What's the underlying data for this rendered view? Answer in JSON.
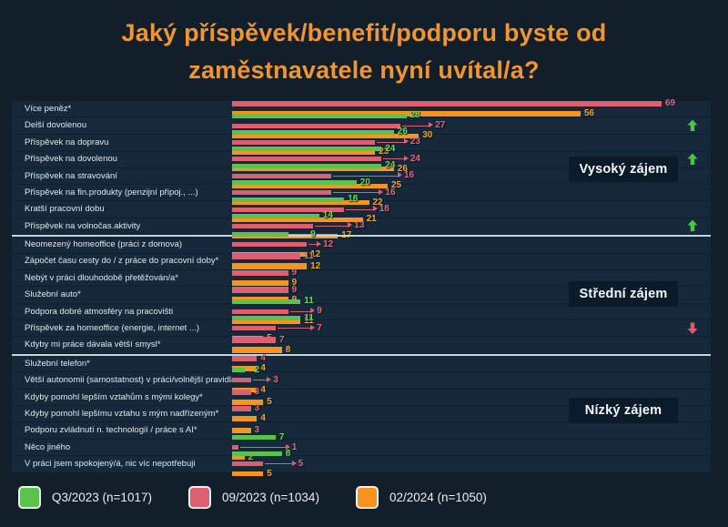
{
  "title": {
    "line1": "Jaký příspěvek/benefit/podporu byste od",
    "line2": "zaměstnavatele nyní uvítal/a?"
  },
  "colors": {
    "background": "#121e2a",
    "plot_band": "#16293a",
    "row_divider": "#0d2030",
    "title_orange": "#f0952f",
    "series_green": "#5cc24e",
    "series_pink": "#dd6070",
    "series_orange": "#f6941d",
    "label_green": "#6fd758",
    "label_pink": "#e2677a",
    "label_orange": "#efa437",
    "separator_white": "#c9d3da",
    "zone_box_bg": "#0c1b29",
    "trend_up": "#4fc444",
    "trend_down": "#e05a6d",
    "row_label_text": "#dfe8ee"
  },
  "legend": [
    {
      "label": "Q3/2023 (n=1017)",
      "color": "#5cc24e"
    },
    {
      "label": "09/2023 (n=1034)",
      "color": "#dd6070"
    },
    {
      "label": "02/2024 (n=1050)",
      "color": "#f6941d"
    }
  ],
  "zones": [
    {
      "label": "Vysoký zájem"
    },
    {
      "label": "Střední zájem"
    },
    {
      "label": "Nízký zájem"
    }
  ],
  "chart_data": {
    "type": "bar",
    "orientation": "horizontal",
    "title": "Jaký příspěvek/benefit/podporu byste od zaměstnavatele nyní uvítal/a?",
    "series_names": [
      "Q3/2023 (n=1017)",
      "09/2023 (n=1034)",
      "02/2024 (n=1050)"
    ],
    "series_order_note": "row values arrays are [Q3/2023, 09/2023, 02/2024]; null = bar not shown",
    "xlim": [
      0,
      77
    ],
    "grid": "row-dividers-only",
    "legend_position": "bottom",
    "sections": [
      {
        "zone": "Vysoký zájem",
        "rows": [
          {
            "category": "Více peněz*",
            "values": [
              null,
              69,
              56
            ],
            "trend": null
          },
          {
            "category": "Delší dovolenou",
            "values": [
              28,
              27,
              30
            ],
            "trend": "up"
          },
          {
            "category": "Příspěvek na dopravu",
            "values": [
              26,
              23,
              23
            ],
            "trend": null
          },
          {
            "category": "Příspěvek na dovolenou",
            "values": [
              24,
              24,
              26
            ],
            "trend": "up"
          },
          {
            "category": "Příspěvek na stravování",
            "values": [
              24,
              16,
              25
            ],
            "trend": null
          },
          {
            "category": "Příspěvek na fin.produkty (penzijní připoj., ...)",
            "values": [
              20,
              16,
              22
            ],
            "trend": null
          },
          {
            "category": "Kratší pracovní dobu",
            "values": [
              18,
              18,
              21
            ],
            "trend": null
          },
          {
            "category": "Příspěvek na volnočas.aktivity",
            "values": [
              14,
              13,
              17
            ],
            "trend": "up"
          }
        ]
      },
      {
        "zone": "Střední zájem",
        "rows": [
          {
            "category": "Neomezený homeoffice (práci z domova)",
            "values": [
              9,
              12,
              12
            ],
            "trend": null
          },
          {
            "category": "Zápočet času cesty do / z práce do pracovní doby*",
            "values": [
              null,
              11,
              12
            ],
            "trend": null
          },
          {
            "category": "Nebýt v práci dlouhodobě přetěžován/a*",
            "values": [
              null,
              9,
              9
            ],
            "trend": null
          },
          {
            "category": "Služební auto*",
            "values": [
              null,
              9,
              9
            ],
            "trend": null
          },
          {
            "category": "Podpora dobré atmosféry na pracovišti",
            "values": [
              11,
              9,
              11
            ],
            "trend": null
          },
          {
            "category": "Příspěvek za homeoffice (energie, internet ...)",
            "values": [
              11,
              7,
              5
            ],
            "trend": "down"
          },
          {
            "category": "Kdyby mi práce dávala větší smysl*",
            "values": [
              null,
              7,
              8
            ],
            "trend": null
          }
        ]
      },
      {
        "zone": "Nízký zájem",
        "rows": [
          {
            "category": "Služební telefon*",
            "values": [
              null,
              4,
              4
            ],
            "trend": null
          },
          {
            "category": "Větší autonomii (samostatnost) v práci/volnější pravidla",
            "values": [
              2,
              3,
              4
            ],
            "trend": null
          },
          {
            "category": "Kdyby pomohl lepším vztahům s mými kolegy*",
            "values": [
              null,
              3,
              5
            ],
            "trend": null
          },
          {
            "category": "Kdyby pomohl lepšímu vztahu s mým nadřízeným*",
            "values": [
              null,
              3,
              4
            ],
            "trend": null
          },
          {
            "category": "Podporu zvládnutí n. technologií / práce s AI*",
            "values": [
              null,
              null,
              3
            ],
            "trend": null,
            "value_label_color": "pink"
          },
          {
            "category": "Něco jiného",
            "values": [
              7,
              1,
              2
            ],
            "trend": null
          },
          {
            "category": "V práci jsem spokojený/á, nic víc nepotřebuji",
            "values": [
              8,
              5,
              5
            ],
            "trend": null
          }
        ]
      }
    ]
  }
}
